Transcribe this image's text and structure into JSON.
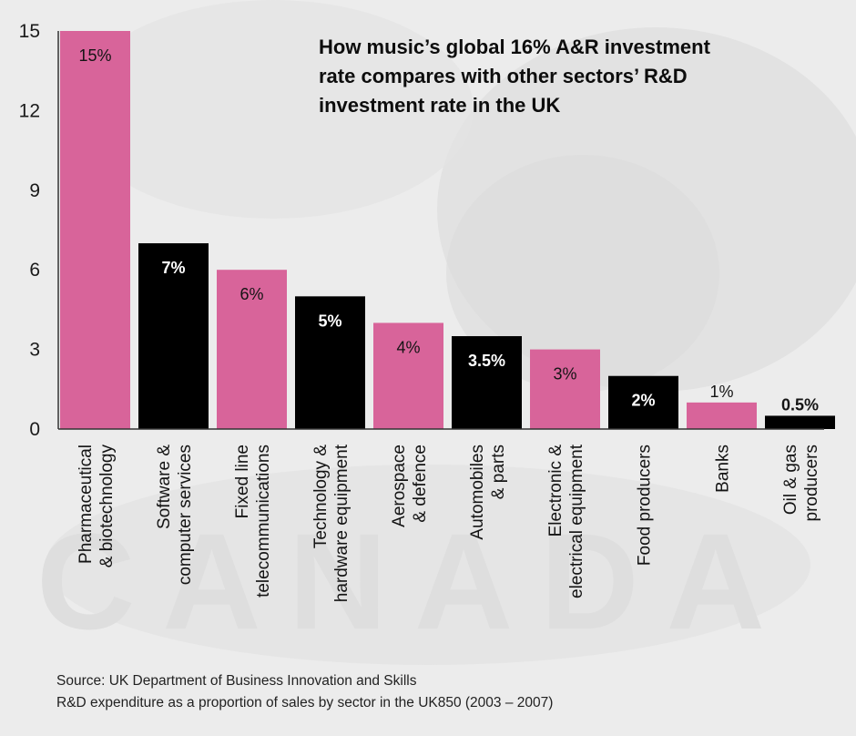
{
  "chart_data": {
    "type": "bar",
    "title_lines": [
      "How music’s global 16% A&R investment",
      "rate compares with other sectors’ R&D",
      "investment rate in the UK"
    ],
    "categories": [
      [
        "Pharmaceutical",
        "& biotechnology"
      ],
      [
        "Software &",
        "computer services"
      ],
      [
        "Fixed line",
        "telecommunications"
      ],
      [
        "Technology &",
        "hardware equipment"
      ],
      [
        "Aerospace",
        "& defence"
      ],
      [
        "Automobiles",
        "& parts"
      ],
      [
        "Electronic &",
        "electrical equipment"
      ],
      [
        "Food producers"
      ],
      [
        "Banks"
      ],
      [
        "Oil & gas",
        "producers"
      ]
    ],
    "values": [
      15,
      7,
      6,
      5,
      4,
      3.5,
      3,
      2,
      1,
      0.5
    ],
    "value_labels": [
      "15%",
      "7%",
      "6%",
      "5%",
      "4%",
      "3.5%",
      "3%",
      "2%",
      "1%",
      "0.5%"
    ],
    "bar_colors": [
      "#d8649a",
      "#000000",
      "#d8649a",
      "#000000",
      "#d8649a",
      "#000000",
      "#d8649a",
      "#000000",
      "#d8649a",
      "#000000"
    ],
    "ylim": [
      0,
      15
    ],
    "yticks": [
      0,
      3,
      6,
      9,
      12,
      15
    ],
    "xlabel": "",
    "ylabel": "",
    "grid": false,
    "legend": "none"
  },
  "source": {
    "line1": "Source: UK Department of Business Innovation and Skills",
    "line2": "R&D expenditure as a proportion of sales by sector in the UK850 (2003 – 2007)"
  },
  "colors": {
    "pink": "#d8649a",
    "black": "#000000",
    "background": "#ececec"
  }
}
